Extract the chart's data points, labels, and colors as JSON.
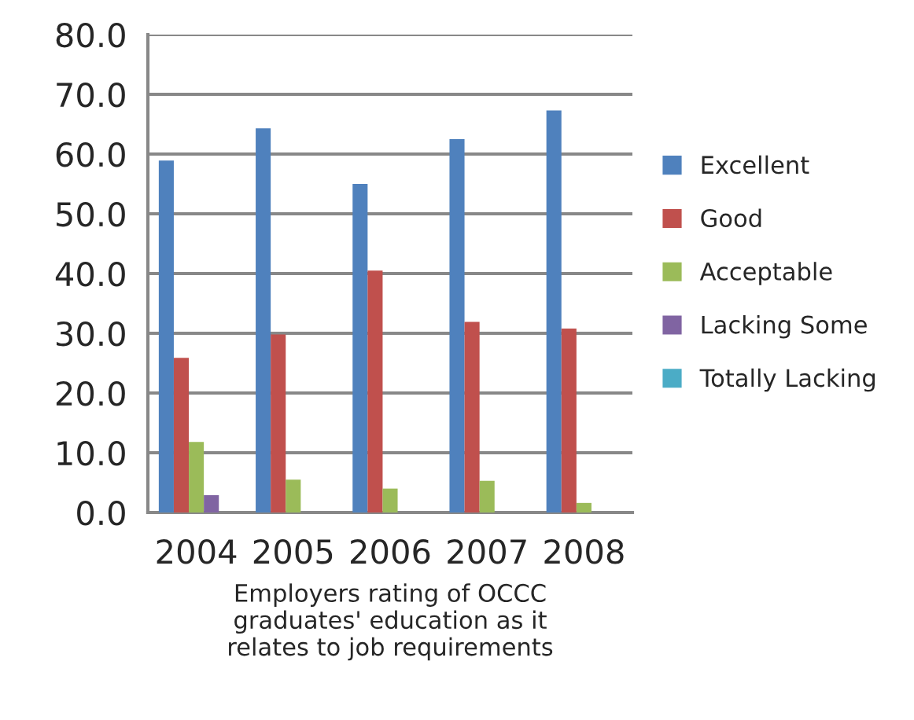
{
  "chart_data": {
    "type": "bar",
    "xlabel": "Employers rating of OCCC\ngraduates' education as it\nrelates to job requirements",
    "categories": [
      "2004",
      "2005",
      "2006",
      "2007",
      "2008"
    ],
    "series": [
      {
        "name": "Excellent",
        "color": "#4f81bd",
        "values": [
          58.9,
          64.3,
          55.0,
          62.5,
          67.3
        ]
      },
      {
        "name": "Good",
        "color": "#c0504d",
        "values": [
          25.9,
          29.8,
          40.5,
          31.9,
          30.8
        ]
      },
      {
        "name": "Acceptable",
        "color": "#9bbb59",
        "values": [
          11.8,
          5.5,
          4.0,
          5.3,
          1.6
        ]
      },
      {
        "name": "Lacking Some",
        "color": "#8064a2",
        "values": [
          2.9,
          0,
          0,
          0,
          0
        ]
      },
      {
        "name": "Totally Lacking",
        "color": "#4bacc6",
        "values": [
          0,
          0,
          0,
          0,
          0
        ]
      }
    ],
    "ylim": [
      0,
      80
    ],
    "yticks": [
      {
        "value": 0,
        "label": "0.0"
      },
      {
        "value": 10,
        "label": "10.0"
      },
      {
        "value": 20,
        "label": "20.0"
      },
      {
        "value": 30,
        "label": "30.0"
      },
      {
        "value": 40,
        "label": "40.0"
      },
      {
        "value": 50,
        "label": "50.0"
      },
      {
        "value": 60,
        "label": "60.0"
      },
      {
        "value": 70,
        "label": "70.0"
      },
      {
        "value": 80,
        "label": "80.0"
      }
    ],
    "grid": "y",
    "legend": "right"
  }
}
